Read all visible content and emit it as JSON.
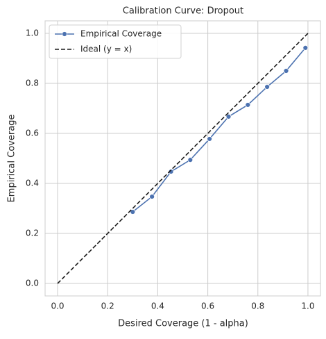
{
  "chart_data": {
    "type": "line",
    "title": "Calibration Curve: Dropout",
    "x_label": "Desired Coverage (1 - alpha)",
    "y_label": "Empirical Coverage",
    "series": [
      {
        "name": "Empirical Coverage",
        "color": "#4c72b0",
        "marker": "circle",
        "dash": "solid",
        "x": [
          0.3,
          0.377,
          0.453,
          0.53,
          0.607,
          0.683,
          0.76,
          0.837,
          0.913,
          0.99
        ],
        "values": [
          0.286,
          0.347,
          0.447,
          0.494,
          0.578,
          0.667,
          0.714,
          0.786,
          0.85,
          0.942
        ]
      },
      {
        "name": "Ideal (y = x)",
        "color": "#1a1a1a",
        "marker": "none",
        "dash": "dashed",
        "x": [
          0,
          1
        ],
        "values": [
          0,
          1
        ]
      }
    ],
    "xlim": [
      -0.05,
      1.05
    ],
    "ylim": [
      -0.05,
      1.05
    ],
    "xticks": [
      {
        "value": 0,
        "label": "0.0"
      },
      0.2,
      0.4,
      0.6,
      0.8,
      {
        "value": 1,
        "label": "1.0"
      }
    ],
    "yticks": [
      {
        "value": 0,
        "label": "0.0"
      },
      0.2,
      0.4,
      0.6,
      0.8,
      {
        "value": 1,
        "label": "1.0"
      }
    ],
    "grid": true,
    "legend": "upper-left"
  }
}
